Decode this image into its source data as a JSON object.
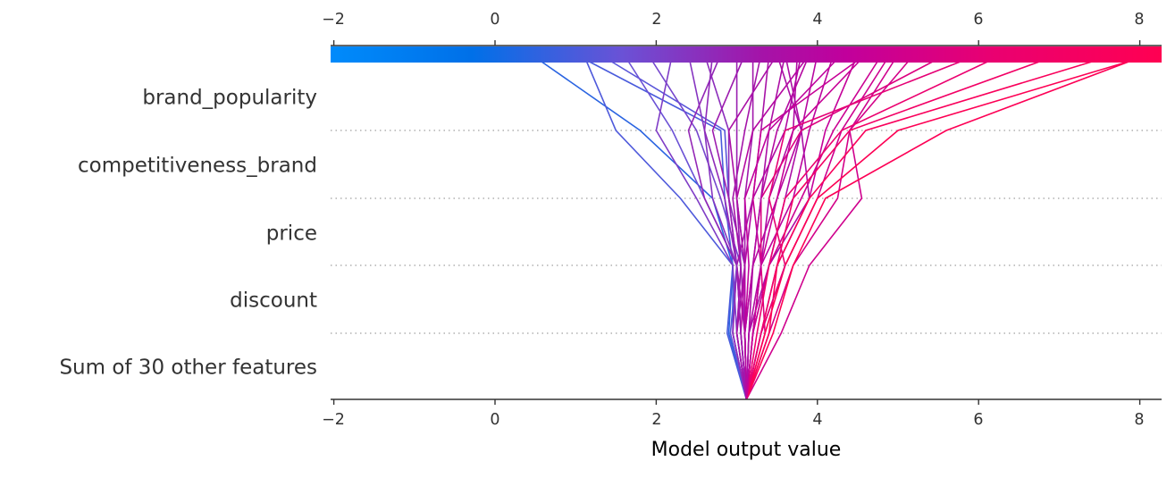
{
  "chart_data": {
    "type": "line",
    "subtype": "shap-decision-plot",
    "title": "",
    "xlabel": "Model output value",
    "ylabel": "",
    "xlim": [
      -2.05,
      8.3
    ],
    "xticks": [
      -2,
      0,
      2,
      4,
      6,
      8
    ],
    "xtick_labels": [
      "−2",
      "0",
      "2",
      "4",
      "6",
      "8"
    ],
    "base_value": 3.12,
    "features_top_to_bottom": [
      "brand_popularity",
      "competitiveness_brand",
      "price",
      "discount",
      "Sum of 30 other features"
    ],
    "colormap": {
      "low": "#008bfb",
      "mid": "#a513a8",
      "high": "#ff0052"
    },
    "grid": "dotted horizontal between feature rows",
    "note": "Each path lists cumulative model output at levels: base, after 'Sum of 30 other features', after discount, after price, after competitiveness_brand, after brand_popularity (final output at top).",
    "paths": [
      [
        3.12,
        2.9,
        2.95,
        2.7,
        1.8,
        0.45
      ],
      [
        3.12,
        2.88,
        2.95,
        2.85,
        2.8,
        1.0
      ],
      [
        3.12,
        2.92,
        3.0,
        2.9,
        2.85,
        1.3
      ],
      [
        3.12,
        2.95,
        2.95,
        2.3,
        1.5,
        1.1
      ],
      [
        3.12,
        2.95,
        3.0,
        2.6,
        2.2,
        1.6
      ],
      [
        3.12,
        3.0,
        3.05,
        2.8,
        2.5,
        1.9
      ],
      [
        3.12,
        3.0,
        2.95,
        2.5,
        2.0,
        2.2
      ],
      [
        3.12,
        3.05,
        3.0,
        2.7,
        2.6,
        2.4
      ],
      [
        3.12,
        3.1,
        3.1,
        2.9,
        2.9,
        2.6
      ],
      [
        3.12,
        3.05,
        3.0,
        2.6,
        2.4,
        2.8
      ],
      [
        3.12,
        3.1,
        3.05,
        3.0,
        3.0,
        3.0
      ],
      [
        3.12,
        3.1,
        3.1,
        3.1,
        3.2,
        3.2
      ],
      [
        3.12,
        3.1,
        3.0,
        3.2,
        3.3,
        3.4
      ],
      [
        3.12,
        3.15,
        3.2,
        3.3,
        3.4,
        3.6
      ],
      [
        3.12,
        3.1,
        3.1,
        3.2,
        3.6,
        3.8
      ],
      [
        3.12,
        3.15,
        3.3,
        3.4,
        3.7,
        3.75
      ],
      [
        3.12,
        3.2,
        3.4,
        3.6,
        3.8,
        3.6
      ],
      [
        3.12,
        3.1,
        3.2,
        3.5,
        3.8,
        4.0
      ],
      [
        3.12,
        3.2,
        3.3,
        3.7,
        3.9,
        4.2
      ],
      [
        3.12,
        3.15,
        3.4,
        3.9,
        3.8,
        3.5
      ],
      [
        3.12,
        3.3,
        3.5,
        3.9,
        4.1,
        4.5
      ],
      [
        3.12,
        3.2,
        3.4,
        3.8,
        4.2,
        4.8
      ],
      [
        3.12,
        3.3,
        3.6,
        4.0,
        4.3,
        4.9
      ],
      [
        3.12,
        3.4,
        3.7,
        4.25,
        4.4,
        5.2
      ],
      [
        3.12,
        3.55,
        3.9,
        4.55,
        4.4,
        5.0
      ],
      [
        3.12,
        3.35,
        3.3,
        3.3,
        3.8,
        5.6
      ],
      [
        3.12,
        3.25,
        3.4,
        3.6,
        4.3,
        6.3
      ],
      [
        3.12,
        3.3,
        3.5,
        3.7,
        4.4,
        7.0
      ],
      [
        3.12,
        3.4,
        3.5,
        3.9,
        4.6,
        7.7
      ],
      [
        3.12,
        3.35,
        3.6,
        4.0,
        5.0,
        8.15
      ],
      [
        3.12,
        3.45,
        3.7,
        4.1,
        5.6,
        8.1
      ],
      [
        3.12,
        3.3,
        3.6,
        3.4,
        3.6,
        6.0
      ],
      [
        3.12,
        3.2,
        3.3,
        3.2,
        3.3,
        4.6
      ],
      [
        3.12,
        3.1,
        3.15,
        3.1,
        3.4,
        4.3
      ],
      [
        3.12,
        3.05,
        3.1,
        3.0,
        3.2,
        3.9
      ],
      [
        3.12,
        3.0,
        3.1,
        3.0,
        2.9,
        3.5
      ],
      [
        3.12,
        3.05,
        3.0,
        2.9,
        2.7,
        3.1
      ],
      [
        3.12,
        2.95,
        3.0,
        2.85,
        2.6,
        2.7
      ],
      [
        3.12,
        3.0,
        3.05,
        2.95,
        3.1,
        3.3
      ],
      [
        3.12,
        3.1,
        3.2,
        3.3,
        3.5,
        3.9
      ],
      [
        3.12,
        3.2,
        3.3,
        3.5,
        3.7,
        4.6
      ]
    ]
  },
  "y_axis": {
    "labels": [
      "brand_popularity",
      "competitiveness_brand",
      "price",
      "discount",
      "Sum of 30 other features"
    ]
  },
  "x_axis": {
    "label": "Model output value",
    "ticks": [
      "−2",
      "0",
      "2",
      "4",
      "6",
      "8"
    ]
  }
}
